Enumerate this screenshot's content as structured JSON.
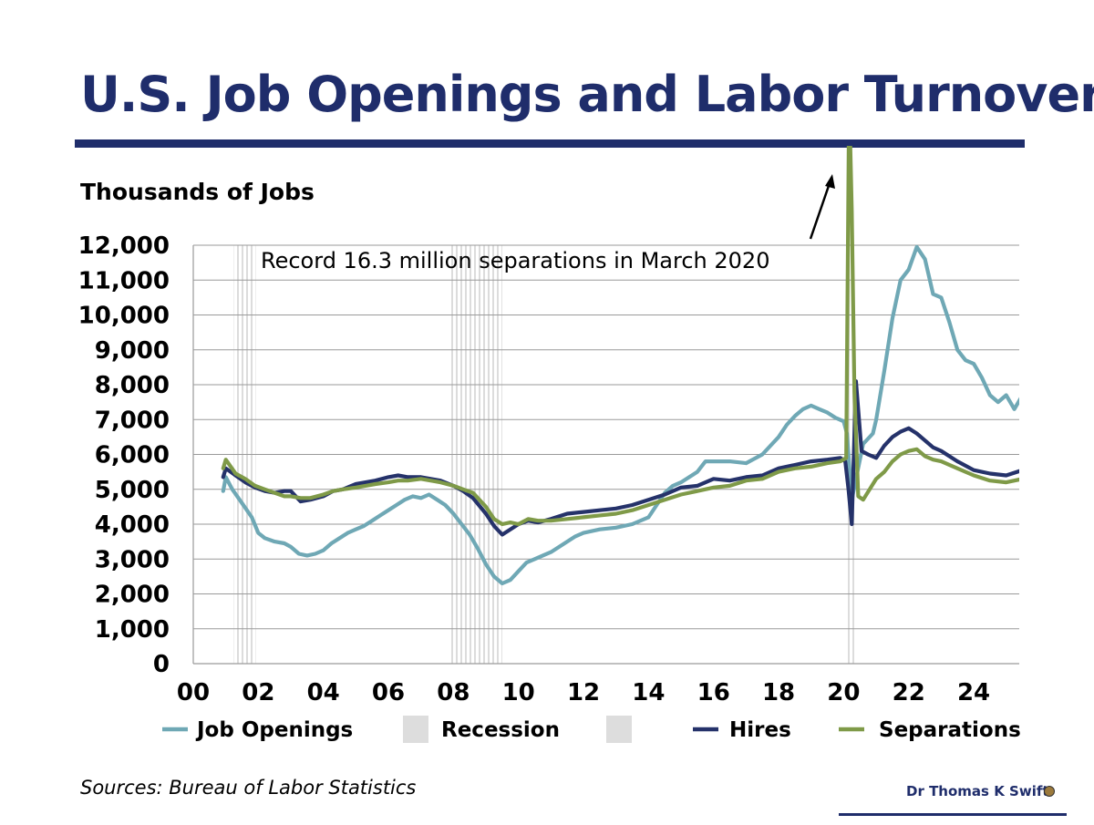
{
  "header": {
    "title": "U.S. Job Openings and Labor Turnover"
  },
  "footer": {
    "source": "Sources: Bureau of Labor Statistics",
    "author": "Dr Thomas K Swift"
  },
  "chart_data": {
    "type": "line",
    "ylabel": "Thousands of Jobs",
    "ylim": [
      0,
      12000
    ],
    "xlim": [
      2000,
      2025.5
    ],
    "y_ticks": [
      {
        "value": 0,
        "label": "0"
      },
      {
        "value": 1000,
        "label": "1,000"
      },
      {
        "value": 2000,
        "label": "2,000"
      },
      {
        "value": 3000,
        "label": "3,000"
      },
      {
        "value": 4000,
        "label": "4,000"
      },
      {
        "value": 5000,
        "label": "5,000"
      },
      {
        "value": 6000,
        "label": "6,000"
      },
      {
        "value": 7000,
        "label": "7,000"
      },
      {
        "value": 8000,
        "label": "8,000"
      },
      {
        "value": 9000,
        "label": "9,000"
      },
      {
        "value": 10000,
        "label": "10,000"
      },
      {
        "value": 11000,
        "label": "11,000"
      },
      {
        "value": 12000,
        "label": "12,000"
      }
    ],
    "x_ticks": [
      {
        "value": 2000,
        "label": "00"
      },
      {
        "value": 2002,
        "label": "02"
      },
      {
        "value": 2004,
        "label": "04"
      },
      {
        "value": 2006,
        "label": "06"
      },
      {
        "value": 2008,
        "label": "08"
      },
      {
        "value": 2010,
        "label": "10"
      },
      {
        "value": 2012,
        "label": "12"
      },
      {
        "value": 2014,
        "label": "14"
      },
      {
        "value": 2016,
        "label": "16"
      },
      {
        "value": 2018,
        "label": "18"
      },
      {
        "value": 2020,
        "label": "20"
      },
      {
        "value": 2022,
        "label": "22"
      },
      {
        "value": 2024,
        "label": "24"
      }
    ],
    "grid": "horizontal",
    "legend_position": "bottom",
    "recessions": [
      [
        2001.25,
        2001.92
      ],
      [
        2007.92,
        2009.5
      ],
      [
        2020.08,
        2020.33
      ]
    ],
    "annotation": {
      "text": "Record 16.3 million separations in March 2020",
      "x": 2020.17,
      "y": 16300
    },
    "legend": [
      {
        "name": "Job Openings",
        "kind": "line",
        "color": "#6fa8b5"
      },
      {
        "name": "Recession",
        "kind": "box",
        "color": "#dddddd"
      },
      {
        "name": "",
        "kind": "box",
        "color": "#dddddd"
      },
      {
        "name": "Hires",
        "kind": "line",
        "color": "#25326a"
      },
      {
        "name": "Separations",
        "kind": "line",
        "color": "#7f9a48"
      }
    ],
    "series": [
      {
        "name": "Job Openings",
        "color": "#6fa8b5",
        "points": [
          [
            2000.92,
            4950
          ],
          [
            2001.0,
            5350
          ],
          [
            2001.2,
            5000
          ],
          [
            2001.5,
            4600
          ],
          [
            2001.8,
            4200
          ],
          [
            2002.0,
            3750
          ],
          [
            2002.2,
            3600
          ],
          [
            2002.5,
            3500
          ],
          [
            2002.8,
            3450
          ],
          [
            2003.0,
            3350
          ],
          [
            2003.25,
            3150
          ],
          [
            2003.5,
            3100
          ],
          [
            2003.75,
            3150
          ],
          [
            2004.0,
            3250
          ],
          [
            2004.25,
            3450
          ],
          [
            2004.5,
            3600
          ],
          [
            2004.75,
            3750
          ],
          [
            2005.0,
            3850
          ],
          [
            2005.25,
            3950
          ],
          [
            2005.5,
            4100
          ],
          [
            2005.75,
            4250
          ],
          [
            2006.0,
            4400
          ],
          [
            2006.25,
            4550
          ],
          [
            2006.5,
            4700
          ],
          [
            2006.75,
            4800
          ],
          [
            2007.0,
            4750
          ],
          [
            2007.25,
            4850
          ],
          [
            2007.5,
            4700
          ],
          [
            2007.75,
            4550
          ],
          [
            2008.0,
            4300
          ],
          [
            2008.25,
            4000
          ],
          [
            2008.5,
            3700
          ],
          [
            2008.75,
            3300
          ],
          [
            2009.0,
            2850
          ],
          [
            2009.25,
            2500
          ],
          [
            2009.5,
            2300
          ],
          [
            2009.75,
            2400
          ],
          [
            2010.0,
            2650
          ],
          [
            2010.25,
            2900
          ],
          [
            2010.5,
            3000
          ],
          [
            2010.75,
            3100
          ],
          [
            2011.0,
            3200
          ],
          [
            2011.25,
            3350
          ],
          [
            2011.5,
            3500
          ],
          [
            2011.75,
            3650
          ],
          [
            2012.0,
            3750
          ],
          [
            2012.5,
            3850
          ],
          [
            2013.0,
            3900
          ],
          [
            2013.5,
            4000
          ],
          [
            2014.0,
            4200
          ],
          [
            2014.25,
            4550
          ],
          [
            2014.5,
            4900
          ],
          [
            2014.75,
            5100
          ],
          [
            2015.0,
            5200
          ],
          [
            2015.5,
            5500
          ],
          [
            2015.75,
            5800
          ],
          [
            2016.0,
            5800
          ],
          [
            2016.5,
            5800
          ],
          [
            2017.0,
            5750
          ],
          [
            2017.5,
            6000
          ],
          [
            2018.0,
            6500
          ],
          [
            2018.25,
            6850
          ],
          [
            2018.5,
            7100
          ],
          [
            2018.75,
            7300
          ],
          [
            2019.0,
            7400
          ],
          [
            2019.25,
            7300
          ],
          [
            2019.5,
            7200
          ],
          [
            2019.75,
            7050
          ],
          [
            2020.0,
            6950
          ],
          [
            2020.1,
            6600
          ],
          [
            2020.25,
            4700
          ],
          [
            2020.4,
            5400
          ],
          [
            2020.6,
            6300
          ],
          [
            2020.9,
            6600
          ],
          [
            2021.0,
            7000
          ],
          [
            2021.25,
            8400
          ],
          [
            2021.5,
            9900
          ],
          [
            2021.75,
            11000
          ],
          [
            2022.0,
            11300
          ],
          [
            2022.25,
            11950
          ],
          [
            2022.5,
            11600
          ],
          [
            2022.75,
            10600
          ],
          [
            2023.0,
            10500
          ],
          [
            2023.25,
            9800
          ],
          [
            2023.5,
            9000
          ],
          [
            2023.75,
            8700
          ],
          [
            2024.0,
            8600
          ],
          [
            2024.25,
            8200
          ],
          [
            2024.5,
            7700
          ],
          [
            2024.75,
            7500
          ],
          [
            2025.0,
            7700
          ],
          [
            2025.25,
            7300
          ],
          [
            2025.5,
            7700
          ]
        ]
      },
      {
        "name": "Hires",
        "color": "#25326a",
        "points": [
          [
            2000.92,
            5350
          ],
          [
            2001.0,
            5600
          ],
          [
            2001.3,
            5400
          ],
          [
            2001.6,
            5200
          ],
          [
            2001.9,
            5050
          ],
          [
            2002.2,
            4950
          ],
          [
            2002.5,
            4900
          ],
          [
            2002.8,
            4950
          ],
          [
            2003.0,
            4950
          ],
          [
            2003.3,
            4650
          ],
          [
            2003.6,
            4700
          ],
          [
            2004.0,
            4800
          ],
          [
            2004.3,
            4950
          ],
          [
            2004.6,
            5000
          ],
          [
            2005.0,
            5150
          ],
          [
            2005.3,
            5200
          ],
          [
            2005.6,
            5250
          ],
          [
            2006.0,
            5350
          ],
          [
            2006.3,
            5400
          ],
          [
            2006.6,
            5350
          ],
          [
            2007.0,
            5350
          ],
          [
            2007.3,
            5300
          ],
          [
            2007.6,
            5250
          ],
          [
            2008.0,
            5100
          ],
          [
            2008.3,
            4950
          ],
          [
            2008.6,
            4750
          ],
          [
            2009.0,
            4300
          ],
          [
            2009.25,
            3950
          ],
          [
            2009.5,
            3700
          ],
          [
            2009.75,
            3850
          ],
          [
            2010.0,
            4000
          ],
          [
            2010.3,
            4100
          ],
          [
            2010.6,
            4050
          ],
          [
            2011.0,
            4150
          ],
          [
            2011.5,
            4300
          ],
          [
            2012.0,
            4350
          ],
          [
            2012.5,
            4400
          ],
          [
            2013.0,
            4450
          ],
          [
            2013.5,
            4550
          ],
          [
            2014.0,
            4700
          ],
          [
            2014.5,
            4850
          ],
          [
            2015.0,
            5050
          ],
          [
            2015.5,
            5100
          ],
          [
            2016.0,
            5300
          ],
          [
            2016.5,
            5250
          ],
          [
            2017.0,
            5350
          ],
          [
            2017.5,
            5400
          ],
          [
            2018.0,
            5600
          ],
          [
            2018.5,
            5700
          ],
          [
            2019.0,
            5800
          ],
          [
            2019.5,
            5850
          ],
          [
            2019.9,
            5900
          ],
          [
            2020.05,
            5800
          ],
          [
            2020.15,
            5000
          ],
          [
            2020.25,
            4000
          ],
          [
            2020.38,
            8100
          ],
          [
            2020.55,
            6100
          ],
          [
            2020.75,
            6000
          ],
          [
            2021.0,
            5900
          ],
          [
            2021.25,
            6250
          ],
          [
            2021.5,
            6500
          ],
          [
            2021.75,
            6650
          ],
          [
            2022.0,
            6750
          ],
          [
            2022.25,
            6600
          ],
          [
            2022.5,
            6400
          ],
          [
            2022.75,
            6200
          ],
          [
            2023.0,
            6100
          ],
          [
            2023.5,
            5800
          ],
          [
            2024.0,
            5550
          ],
          [
            2024.5,
            5450
          ],
          [
            2025.0,
            5400
          ],
          [
            2025.5,
            5550
          ]
        ]
      },
      {
        "name": "Separations",
        "color": "#7f9a48",
        "points": [
          [
            2000.92,
            5600
          ],
          [
            2001.0,
            5850
          ],
          [
            2001.3,
            5450
          ],
          [
            2001.6,
            5300
          ],
          [
            2001.9,
            5100
          ],
          [
            2002.2,
            5000
          ],
          [
            2002.5,
            4900
          ],
          [
            2002.8,
            4800
          ],
          [
            2003.0,
            4800
          ],
          [
            2003.3,
            4750
          ],
          [
            2003.6,
            4750
          ],
          [
            2004.0,
            4850
          ],
          [
            2004.3,
            4950
          ],
          [
            2004.6,
            5000
          ],
          [
            2005.0,
            5050
          ],
          [
            2005.3,
            5100
          ],
          [
            2005.6,
            5150
          ],
          [
            2006.0,
            5200
          ],
          [
            2006.3,
            5250
          ],
          [
            2006.6,
            5250
          ],
          [
            2007.0,
            5300
          ],
          [
            2007.3,
            5250
          ],
          [
            2007.6,
            5200
          ],
          [
            2008.0,
            5100
          ],
          [
            2008.3,
            5000
          ],
          [
            2008.6,
            4900
          ],
          [
            2009.0,
            4500
          ],
          [
            2009.25,
            4150
          ],
          [
            2009.5,
            4000
          ],
          [
            2009.75,
            4050
          ],
          [
            2010.0,
            4000
          ],
          [
            2010.3,
            4150
          ],
          [
            2010.6,
            4100
          ],
          [
            2011.0,
            4100
          ],
          [
            2011.5,
            4150
          ],
          [
            2012.0,
            4200
          ],
          [
            2012.5,
            4250
          ],
          [
            2013.0,
            4300
          ],
          [
            2013.5,
            4400
          ],
          [
            2014.0,
            4550
          ],
          [
            2014.5,
            4700
          ],
          [
            2015.0,
            4850
          ],
          [
            2015.5,
            4950
          ],
          [
            2016.0,
            5050
          ],
          [
            2016.5,
            5100
          ],
          [
            2017.0,
            5250
          ],
          [
            2017.5,
            5300
          ],
          [
            2018.0,
            5500
          ],
          [
            2018.5,
            5600
          ],
          [
            2019.0,
            5650
          ],
          [
            2019.5,
            5750
          ],
          [
            2019.9,
            5800
          ],
          [
            2020.08,
            5900
          ],
          [
            2020.17,
            16300
          ],
          [
            2020.25,
            13000
          ],
          [
            2020.33,
            7800
          ],
          [
            2020.45,
            4800
          ],
          [
            2020.6,
            4700
          ],
          [
            2020.8,
            5000
          ],
          [
            2021.0,
            5300
          ],
          [
            2021.25,
            5500
          ],
          [
            2021.5,
            5800
          ],
          [
            2021.75,
            6000
          ],
          [
            2022.0,
            6100
          ],
          [
            2022.25,
            6150
          ],
          [
            2022.5,
            5950
          ],
          [
            2022.75,
            5850
          ],
          [
            2023.0,
            5800
          ],
          [
            2023.5,
            5600
          ],
          [
            2024.0,
            5400
          ],
          [
            2024.5,
            5250
          ],
          [
            2025.0,
            5200
          ],
          [
            2025.5,
            5300
          ]
        ]
      }
    ]
  }
}
